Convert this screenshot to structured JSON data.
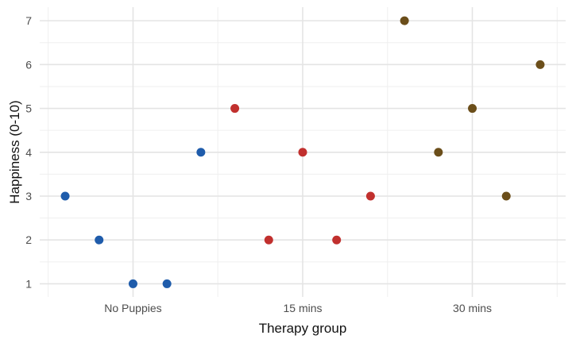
{
  "chart_data": {
    "type": "scatter",
    "title": "",
    "xlabel": "Therapy group",
    "ylabel": "Happiness (0-10)",
    "legend_position": "none",
    "grid": {
      "show": true,
      "major_color": "#e4e4e4",
      "minor_color": "#efefef"
    },
    "background_color": "#ffffff",
    "tick_label_color": "#4d4d4d",
    "axis_title_color": "#111111",
    "point_radius": 5.5,
    "categories": [
      {
        "label": "No Puppies",
        "x": 1
      },
      {
        "label": "15 mins",
        "x": 2
      },
      {
        "label": "30 mins",
        "x": 3
      }
    ],
    "xlim": [
      0.45,
      3.55
    ],
    "ylim": [
      0.7,
      7.31
    ],
    "yticks": [
      1,
      2,
      3,
      4,
      5,
      6,
      7
    ],
    "x_minor_gridlines": [
      0.5,
      1.5,
      2.5,
      3.5
    ],
    "y_minor_gridlines": [
      1.5,
      2.5,
      3.5,
      4.5,
      5.5,
      6.5
    ],
    "series": [
      {
        "name": "No Puppies",
        "color": "#1f5cab",
        "happiness_values": [
          3,
          2,
          1,
          1,
          4
        ],
        "points": [
          [
            0.6,
            3
          ],
          [
            0.8,
            2
          ],
          [
            1.0,
            1
          ],
          [
            1.2,
            1
          ],
          [
            1.4,
            4
          ]
        ]
      },
      {
        "name": "15 mins",
        "color": "#c1302e",
        "happiness_values": [
          5,
          2,
          4,
          2,
          3
        ],
        "points": [
          [
            1.6,
            5
          ],
          [
            1.8,
            2
          ],
          [
            2.0,
            4
          ],
          [
            2.2,
            2
          ],
          [
            2.4,
            3
          ]
        ]
      },
      {
        "name": "30 mins",
        "color": "#6b4e1a",
        "happiness_values": [
          7,
          4,
          5,
          3,
          6
        ],
        "points": [
          [
            2.6,
            7
          ],
          [
            2.8,
            4
          ],
          [
            3.0,
            5
          ],
          [
            3.2,
            3
          ],
          [
            3.4,
            6
          ]
        ]
      }
    ]
  }
}
